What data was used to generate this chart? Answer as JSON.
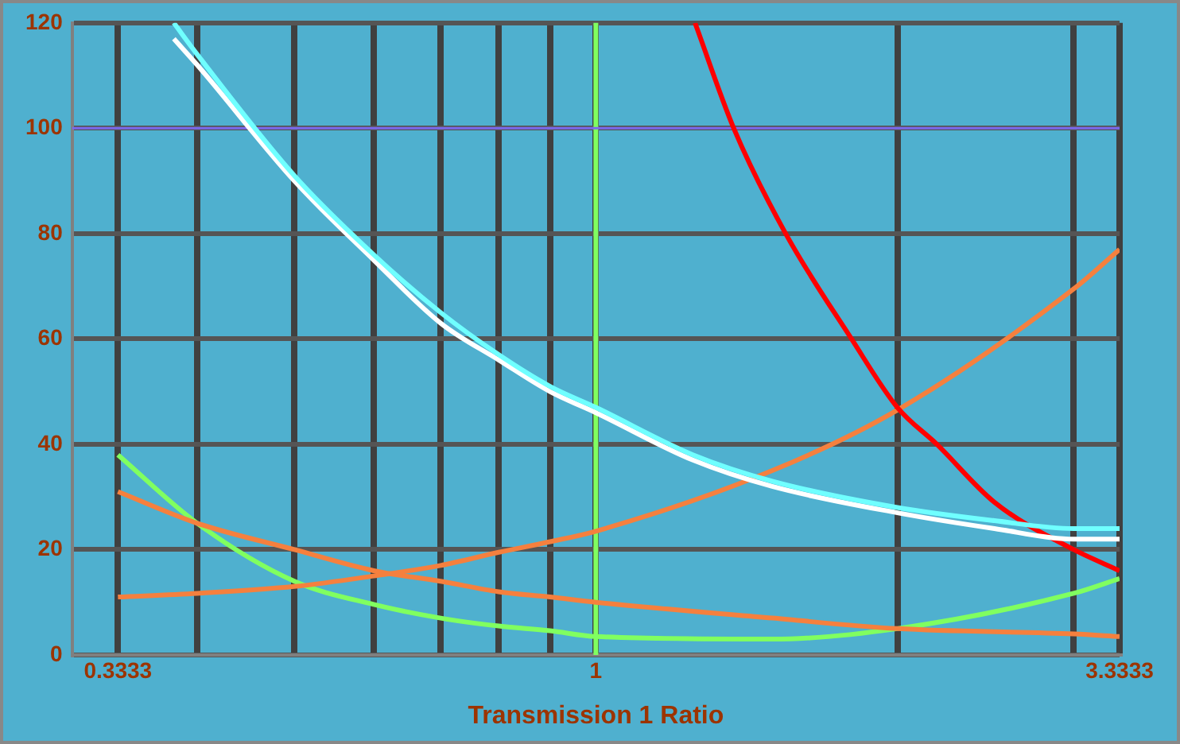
{
  "chart_data": {
    "type": "line",
    "xlabel": "Transmission 1 Ratio",
    "log": "x",
    "grid": true,
    "legend": false,
    "marker": "none",
    "line_style": "solid",
    "xlim": [
      0.3333,
      3.3333
    ],
    "xticks": [
      0.3333,
      {
        "value": 0.4,
        "label": null
      },
      {
        "value": 0.5,
        "label": null
      },
      {
        "value": 0.6,
        "label": null
      },
      {
        "value": 0.7,
        "label": null
      },
      {
        "value": 0.8,
        "label": null
      },
      {
        "value": 0.9,
        "label": null
      },
      1,
      {
        "value": 2,
        "label": null
      },
      {
        "value": 3,
        "label": null
      },
      3.3333
    ],
    "ylim": [
      0,
      120
    ],
    "yticks": [
      0,
      20,
      40,
      60,
      80,
      100,
      120
    ],
    "ref_lines": [
      {
        "axis": "x",
        "value": 1,
        "label": null,
        "color": "#80ff60"
      },
      {
        "axis": "y",
        "value": 100,
        "label": null,
        "color": "#7b68ee"
      }
    ],
    "series": [
      {
        "color": "#70ffff",
        "x": [
          0.379,
          0.4,
          0.5,
          0.6,
          0.7,
          0.8,
          0.9,
          1,
          1.25,
          1.5,
          2,
          2.5,
          3,
          3.3333
        ],
        "values": [
          120,
          114,
          91,
          76,
          65,
          57,
          51,
          47,
          38,
          33,
          28,
          25.5,
          24,
          24
        ]
      },
      {
        "color": "#ffffff",
        "x": [
          0.379,
          0.4,
          0.5,
          0.6,
          0.7,
          0.8,
          0.9,
          1,
          1.25,
          1.5,
          2,
          2.5,
          3,
          3.3333
        ],
        "values": [
          117,
          112,
          90,
          75,
          63,
          56,
          50,
          46,
          37,
          32,
          27,
          24,
          22,
          22
        ]
      },
      {
        "color": "#ff0000",
        "x": [
          1.256,
          1.373,
          1.547,
          1.8,
          2,
          2.19,
          2.5,
          3,
          3.3333
        ],
        "values": [
          120,
          100,
          80,
          60,
          47,
          40,
          29,
          20,
          16
        ]
      },
      {
        "color": "#f5803e",
        "x": [
          0.3333,
          0.4,
          0.5,
          0.6,
          0.7,
          0.8,
          0.9,
          1,
          1.5,
          2,
          3,
          3.3333
        ],
        "values": [
          11,
          11.7,
          13,
          15,
          17,
          19.5,
          21.5,
          23.5,
          35,
          46.5,
          69.5,
          77
        ]
      },
      {
        "color": "#f5803e",
        "x": [
          0.3333,
          0.4,
          0.5,
          0.6,
          0.7,
          0.8,
          0.9,
          1,
          1.5,
          2,
          3,
          3.3333
        ],
        "values": [
          31,
          25,
          20,
          16,
          14,
          12,
          11,
          10,
          7,
          5,
          4,
          3.5
        ]
      },
      {
        "color": "#80ff60",
        "x": [
          0.3333,
          0.4,
          0.5,
          0.6,
          0.7,
          0.8,
          0.9,
          1,
          1.5,
          2,
          3,
          3.3333
        ],
        "values": [
          38,
          25,
          14,
          9.6,
          7,
          5.5,
          4.6,
          3.5,
          3,
          5,
          11.7,
          14.5
        ]
      }
    ]
  }
}
